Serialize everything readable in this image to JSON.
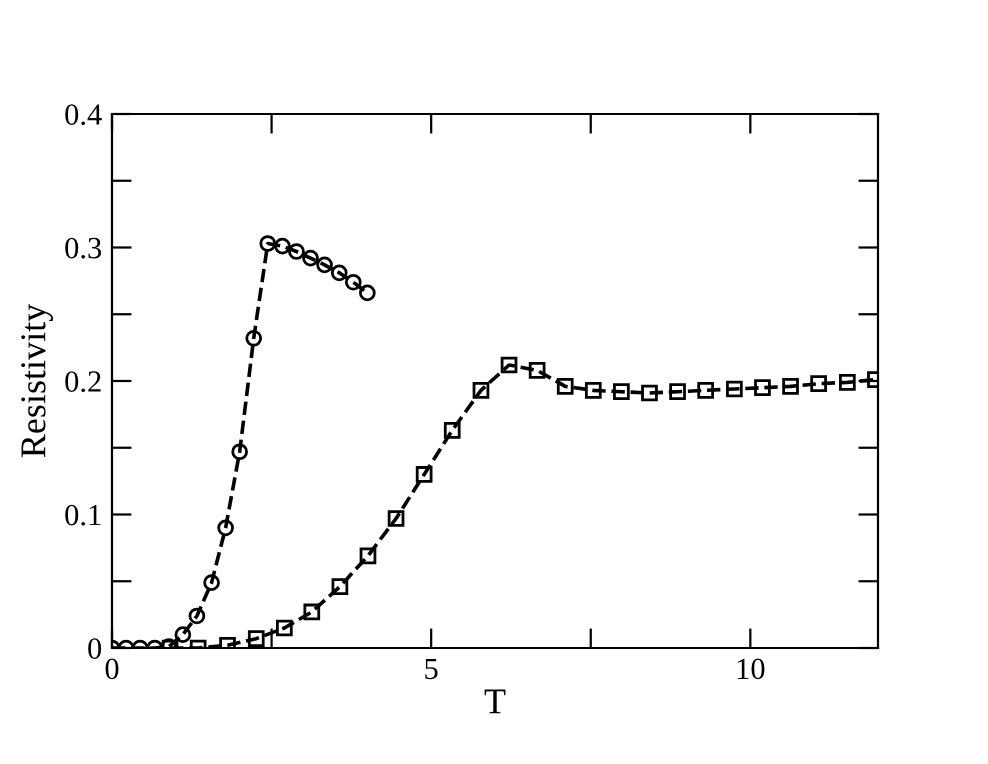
{
  "chart_data": {
    "type": "line",
    "xlabel": "T",
    "ylabel": "Resistivity",
    "xlim": [
      0,
      12
    ],
    "ylim": [
      0,
      0.4
    ],
    "xticks": [
      0,
      {
        "value": 2.5,
        "label": null
      },
      5,
      {
        "value": 7.5,
        "label": null
      },
      10
    ],
    "yticks": [
      0,
      {
        "value": 0.05,
        "label": null
      },
      0.1,
      {
        "value": 0.15,
        "label": null
      },
      0.2,
      {
        "value": 0.25,
        "label": null
      },
      0.3,
      {
        "value": 0.35,
        "label": null
      },
      0.4
    ],
    "grid": false,
    "legend": false,
    "line_style": "dashed",
    "series": [
      {
        "color": "#000000",
        "marker": "circle",
        "x": [
          0,
          0.22,
          0.44,
          0.67,
          0.89,
          1.11,
          1.33,
          1.56,
          1.78,
          2.0,
          2.22,
          2.44,
          2.67,
          2.89,
          3.11,
          3.33,
          3.56,
          3.78,
          4.0
        ],
        "values": [
          0,
          0,
          0,
          0,
          0.001,
          0.01,
          0.024,
          0.049,
          0.09,
          0.147,
          0.232,
          0.303,
          0.301,
          0.297,
          0.292,
          0.287,
          0.281,
          0.274,
          0.266
        ]
      },
      {
        "color": "#000000",
        "marker": "square",
        "x": [
          0.91,
          1.35,
          1.81,
          2.26,
          2.7,
          3.13,
          3.57,
          4.01,
          4.45,
          4.89,
          5.33,
          5.78,
          6.22,
          6.66,
          7.1,
          7.54,
          7.98,
          8.42,
          8.86,
          9.3,
          9.75,
          10.19,
          10.63,
          11.07,
          11.52,
          11.96
        ],
        "values": [
          0,
          0,
          0.002,
          0.007,
          0.015,
          0.027,
          0.046,
          0.069,
          0.097,
          0.13,
          0.163,
          0.193,
          0.212,
          0.208,
          0.196,
          0.193,
          0.192,
          0.191,
          0.192,
          0.193,
          0.194,
          0.195,
          0.196,
          0.198,
          0.199,
          0.201
        ]
      }
    ]
  }
}
